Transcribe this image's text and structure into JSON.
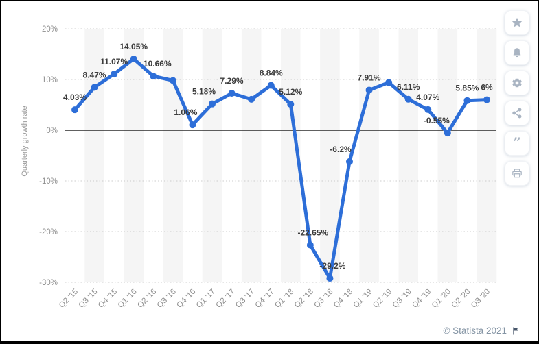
{
  "chart_data": {
    "type": "line",
    "title": "",
    "xlabel": "",
    "ylabel": "Quarterly growth rate",
    "categories": [
      "Q2 '15",
      "Q3 '15",
      "Q4 '15",
      "Q1 '16",
      "Q2 '16",
      "Q3 '16",
      "Q4 '16",
      "Q1 '17",
      "Q2 '17",
      "Q3 '17",
      "Q4 '17",
      "Q1 '18",
      "Q2 '18",
      "Q3 '18",
      "Q4 '18",
      "Q1 '19",
      "Q2 '19",
      "Q3 '19",
      "Q4 '19",
      "Q1 '20",
      "Q2 '20",
      "Q3 '20"
    ],
    "values": [
      4.03,
      8.47,
      11.07,
      14.05,
      10.66,
      9.8,
      1.06,
      5.18,
      7.29,
      6.1,
      8.84,
      5.12,
      -22.65,
      -29.2,
      -6.2,
      7.91,
      9.4,
      6.11,
      4.07,
      -0.55,
      5.85,
      6
    ],
    "point_labels": [
      "4.03%",
      "8.47%",
      "11.07%",
      "14.05%",
      "10.66%",
      null,
      "1.06%",
      "5.18%",
      "7.29%",
      null,
      "8.84%",
      "5.12%",
      "-22.65%",
      "-29.2%",
      "-6.2%",
      "7.91%",
      null,
      "6.11%",
      "4.07%",
      "-0.55%",
      "5.85%",
      "6%"
    ],
    "unlabeled_points_estimated": [
      "Q3 '16",
      "Q3 '17",
      "Q2 '19"
    ],
    "y_ticks": [
      {
        "value": 20,
        "label": "20%"
      },
      {
        "value": 10,
        "label": "10%"
      },
      {
        "value": 0,
        "label": "0%"
      },
      {
        "value": -10,
        "label": "-10%"
      },
      {
        "value": -20,
        "label": "-20%"
      },
      {
        "value": -30,
        "label": "-30%"
      }
    ],
    "ylim": [
      -30,
      20
    ],
    "grid": "horizontal dotted, solid line at zero, alternating vertical category bands",
    "legend": "none",
    "colors": {
      "line": "#2d6ed8",
      "marker": "#2d6ed8",
      "data_label": "#3c3c3c",
      "axis_text": "#8e8e8e",
      "gridline": "#cccccc",
      "zero_line": "#000000",
      "stripe_band": "#f5f5f5",
      "background": "#ffffff"
    }
  },
  "sidebar": {
    "buttons": [
      {
        "name": "favorite",
        "icon": "star-icon"
      },
      {
        "name": "notifications",
        "icon": "bell-icon"
      },
      {
        "name": "settings",
        "icon": "gear-icon"
      },
      {
        "name": "share",
        "icon": "share-icon"
      },
      {
        "name": "cite",
        "icon": "quote-icon"
      },
      {
        "name": "print",
        "icon": "printer-icon"
      }
    ],
    "icon_color": "#a9b4c2"
  },
  "footer": {
    "credit": "© Statista 2021",
    "flag_icon": "flag-icon",
    "credit_color": "#8494a4"
  }
}
